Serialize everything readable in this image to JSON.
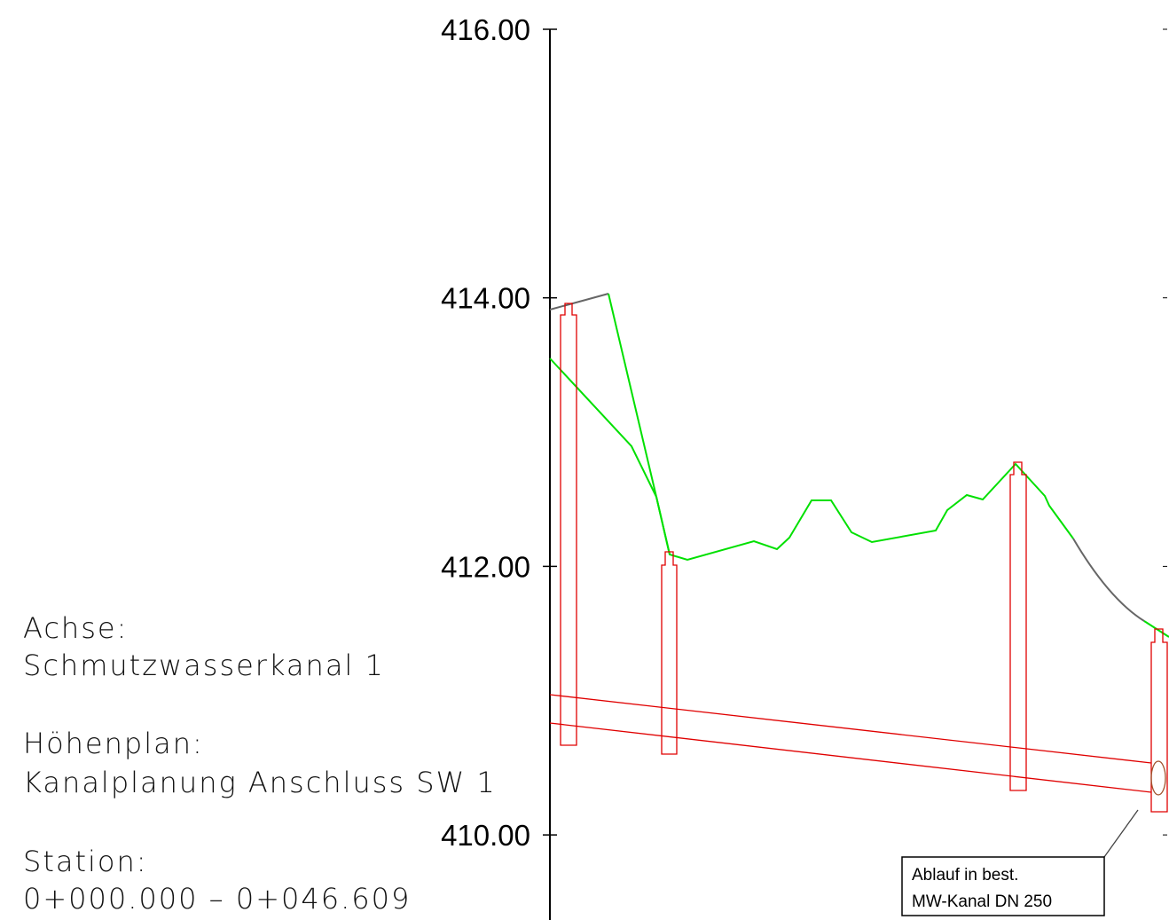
{
  "axis": {
    "ticks": [
      "416.00",
      "414.00",
      "412.00",
      "410.00"
    ]
  },
  "info": {
    "lines": [
      "Achse:",
      "Schmutzwasserkanal 1",
      "Höhenplan:",
      "Kanalplanung Anschluss SW 1",
      "Station:",
      "0+000.000 – 0+046.609"
    ]
  },
  "callout": {
    "lines": [
      "Ablauf in best.",
      "MW-Kanal DN 250"
    ]
  }
}
